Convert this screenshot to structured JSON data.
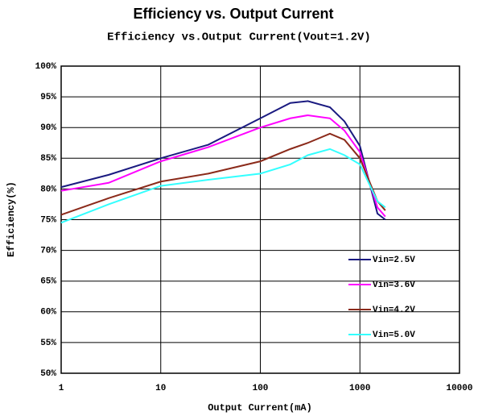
{
  "chart_data": {
    "type": "line",
    "title": "Efficiency vs. Output Current",
    "subtitle": "Efficiency vs.Output Current(Vout=1.2V)",
    "xlabel": "Output Current(mA)",
    "ylabel": "Efficiency(%)",
    "xscale": "log",
    "x": [
      1,
      3,
      10,
      30,
      100,
      200,
      300,
      500,
      700,
      1000,
      1500,
      1800
    ],
    "series": [
      {
        "name": "Vin=2.5V",
        "color": "#1a1a80",
        "values": [
          80.3,
          82.3,
          85,
          87.2,
          91.5,
          94,
          94.3,
          93.3,
          91,
          87,
          76,
          75
        ]
      },
      {
        "name": "Vin=3.6V",
        "color": "#ff00ff",
        "values": [
          79.7,
          81,
          84.5,
          86.8,
          90,
          91.5,
          92,
          91.5,
          89.5,
          86,
          77,
          75.5
        ]
      },
      {
        "name": "Vin=4.2V",
        "color": "#8b2a1a",
        "values": [
          75.8,
          78.5,
          81.2,
          82.5,
          84.5,
          86.5,
          87.5,
          89,
          88,
          85,
          78,
          76.5
        ]
      },
      {
        "name": "Vin=5.0V",
        "color": "#33ffff",
        "values": [
          74.5,
          77.5,
          80.5,
          81.5,
          82.5,
          84,
          85.5,
          86.5,
          85.5,
          84,
          78,
          77
        ]
      }
    ],
    "xlim": [
      1,
      10000
    ],
    "xticks": [
      1,
      10,
      100,
      1000,
      10000
    ],
    "ylim": [
      50,
      100
    ],
    "yticks": [
      {
        "value": 50,
        "label": "50%"
      },
      {
        "value": 55,
        "label": "55%"
      },
      {
        "value": 60,
        "label": "60%"
      },
      {
        "value": 65,
        "label": "65%"
      },
      {
        "value": 70,
        "label": "70%"
      },
      {
        "value": 75,
        "label": "75%"
      },
      {
        "value": 80,
        "label": "80%"
      },
      {
        "value": 85,
        "label": "85%"
      },
      {
        "value": 90,
        "label": "90%"
      },
      {
        "value": 95,
        "label": "95%"
      },
      {
        "value": 100,
        "label": "100%"
      }
    ],
    "grid": true,
    "legend": "lower right"
  }
}
